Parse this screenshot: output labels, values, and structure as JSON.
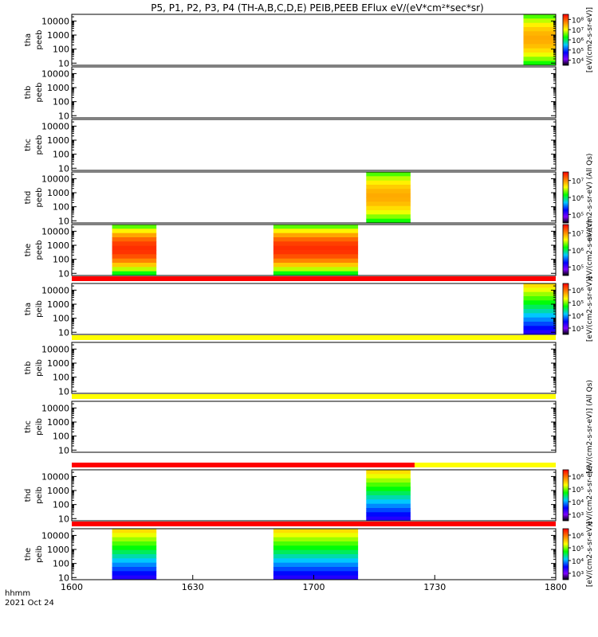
{
  "chart_data": {
    "type": "heatmap",
    "title": "P5, P1, P2, P3, P4 (TH-A,B,C,D,E) PEIB,PEEB EFlux eV/(eV*cm²*sec*sr)",
    "x_axis": {
      "range": [
        "1600",
        "1800"
      ],
      "tick_labels": [
        "1600",
        "1630",
        "1700",
        "1730",
        "1800"
      ],
      "label": "hhmm",
      "date_label": "2021 Oct 24"
    },
    "y_axis": {
      "scale": "log",
      "range": [
        7,
        30000
      ],
      "tick_labels": [
        "10",
        "100",
        "1000",
        "10000"
      ]
    },
    "panels": [
      {
        "probe": "tha",
        "type": "peeb",
        "colorbar": true,
        "cbar_label": "[eV/(cm2-s-sr-eV)]",
        "cbar_ticks": [
          "10⁴",
          "10⁵",
          "10⁶",
          "10⁷",
          "10⁸"
        ],
        "data_intervals": [
          {
            "start": "1752",
            "end": "1800"
          }
        ]
      },
      {
        "probe": "thb",
        "type": "peeb",
        "colorbar": false,
        "data_intervals": []
      },
      {
        "probe": "thc",
        "type": "peeb",
        "colorbar": false,
        "data_intervals": []
      },
      {
        "probe": "thd",
        "type": "peeb",
        "colorbar": true,
        "cbar_label": "eV/(cm2-s-sr-eV) (All Qs)",
        "cbar_ticks": [
          "10⁵",
          "10⁶",
          "10⁷"
        ],
        "data_intervals": [
          {
            "start": "1713",
            "end": "1724"
          }
        ]
      },
      {
        "probe": "the",
        "type": "peeb",
        "colorbar": true,
        "cbar_label": "eV/(cm2-s-sr-eV)",
        "cbar_ticks": [
          "10⁵",
          "10⁶",
          "10⁷"
        ],
        "data_intervals": [
          {
            "start": "1610",
            "end": "1621"
          },
          {
            "start": "1650",
            "end": "1711"
          }
        ]
      },
      {
        "probe": "tha",
        "type": "peib",
        "colorbar": true,
        "cbar_label": "[eV/(cm2-s-sr-eV)]",
        "cbar_ticks": [
          "10³",
          "10⁴",
          "10⁵",
          "10⁶"
        ],
        "data_intervals": [
          {
            "start": "1752",
            "end": "1800"
          }
        ]
      },
      {
        "probe": "thb",
        "type": "peib",
        "colorbar": false,
        "data_intervals": []
      },
      {
        "probe": "thc",
        "type": "peib",
        "colorbar": false,
        "cbar_label": "[eV/(cm2-s-sr-eV)] (All Qs)",
        "data_intervals": []
      },
      {
        "probe": "thd",
        "type": "peib",
        "colorbar": true,
        "cbar_label": "eV/(cm2-s-sr-eV)",
        "cbar_ticks": [
          "10³",
          "10⁴",
          "10⁵",
          "10⁶"
        ],
        "data_intervals": [
          {
            "start": "1713",
            "end": "1724"
          }
        ]
      },
      {
        "probe": "the",
        "type": "peib",
        "colorbar": true,
        "cbar_label": "[eV/(cm2-s-sr-eV)]",
        "cbar_ticks": [
          "10³",
          "10⁴",
          "10⁵",
          "10⁶"
        ],
        "data_intervals": [
          {
            "start": "1610",
            "end": "1621"
          },
          {
            "start": "1650",
            "end": "1711"
          }
        ]
      }
    ],
    "status_bars": [
      {
        "after_panel": 4,
        "color": "#ff0000"
      },
      {
        "after_panel": 5,
        "color": "#ffff00"
      },
      {
        "after_panel": 6,
        "color": "#ffff00"
      },
      {
        "after_panel": 7,
        "color": "#ff0000",
        "end_color": "#ffff00",
        "switch_at": "1725"
      },
      {
        "after_panel": 8,
        "color": "#ff0000"
      }
    ]
  }
}
